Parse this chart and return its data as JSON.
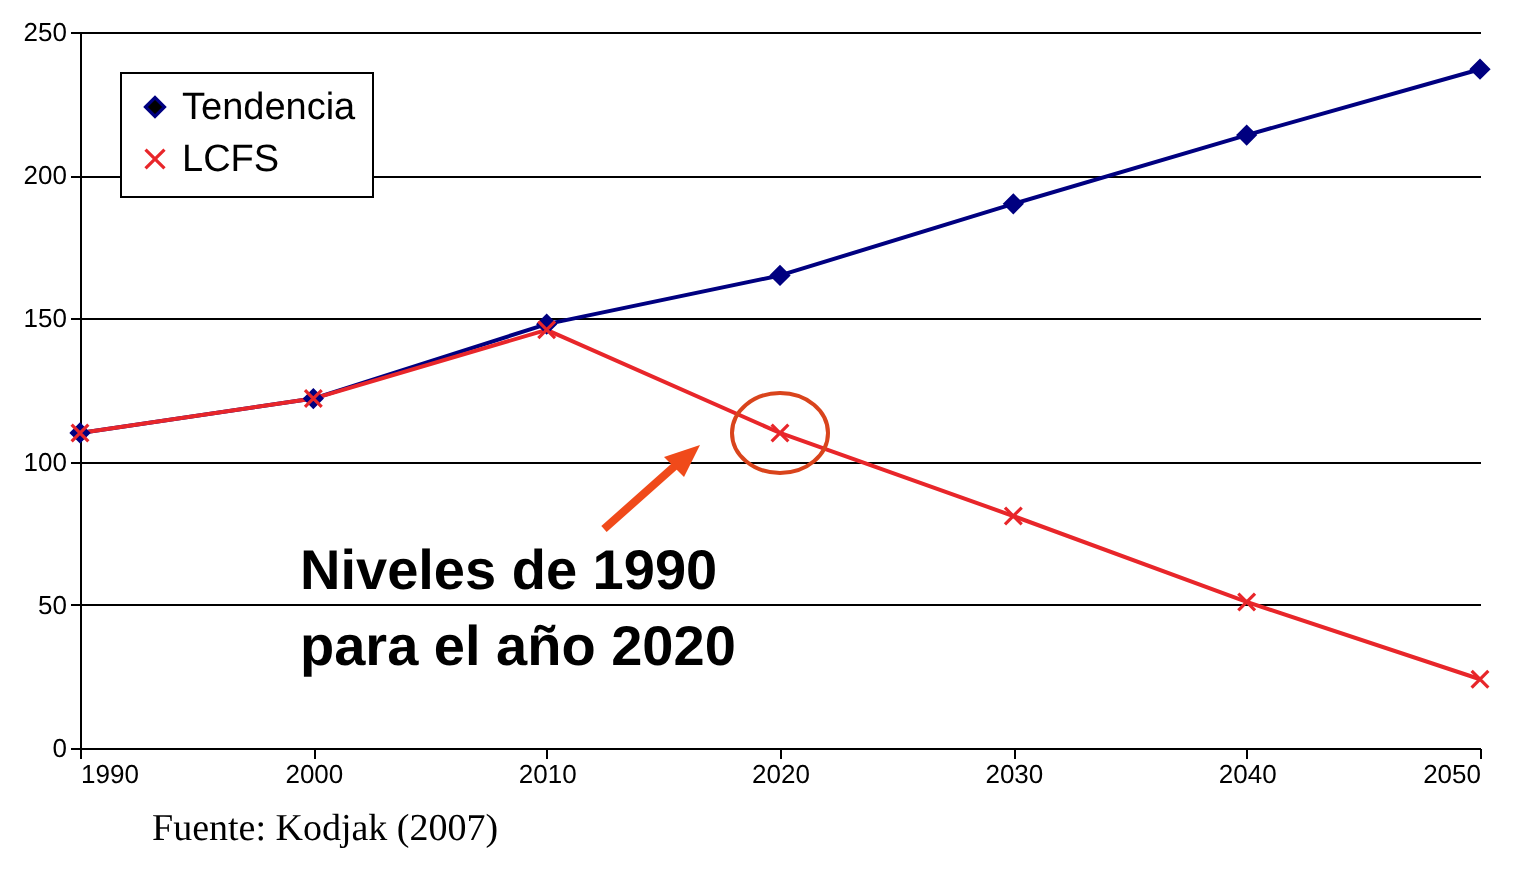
{
  "chart_data": {
    "type": "line",
    "x": [
      1990,
      2000,
      2010,
      2020,
      2030,
      2040,
      2050
    ],
    "series": [
      {
        "name": "Tendencia",
        "color": "#000080",
        "marker": "diamond",
        "values": [
          110,
          122,
          148,
          165,
          190,
          214,
          237
        ]
      },
      {
        "name": "LCFS",
        "color": "#e8262a",
        "marker": "cross",
        "values": [
          110,
          122,
          146,
          110,
          81,
          51,
          24
        ]
      }
    ],
    "xlim": [
      1990,
      2050
    ],
    "xticks": [
      1990,
      2000,
      2010,
      2020,
      2030,
      2040,
      2050
    ],
    "ylim": [
      0,
      250
    ],
    "yticks": [
      0,
      50,
      100,
      150,
      200,
      250
    ],
    "grid": "y",
    "legend": "top left",
    "annotations": [
      {
        "text": "Niveles de 1990\npara el año 2020",
        "x": 2020,
        "y": 110
      },
      "Fuente: Kodjak (2007)"
    ]
  }
}
